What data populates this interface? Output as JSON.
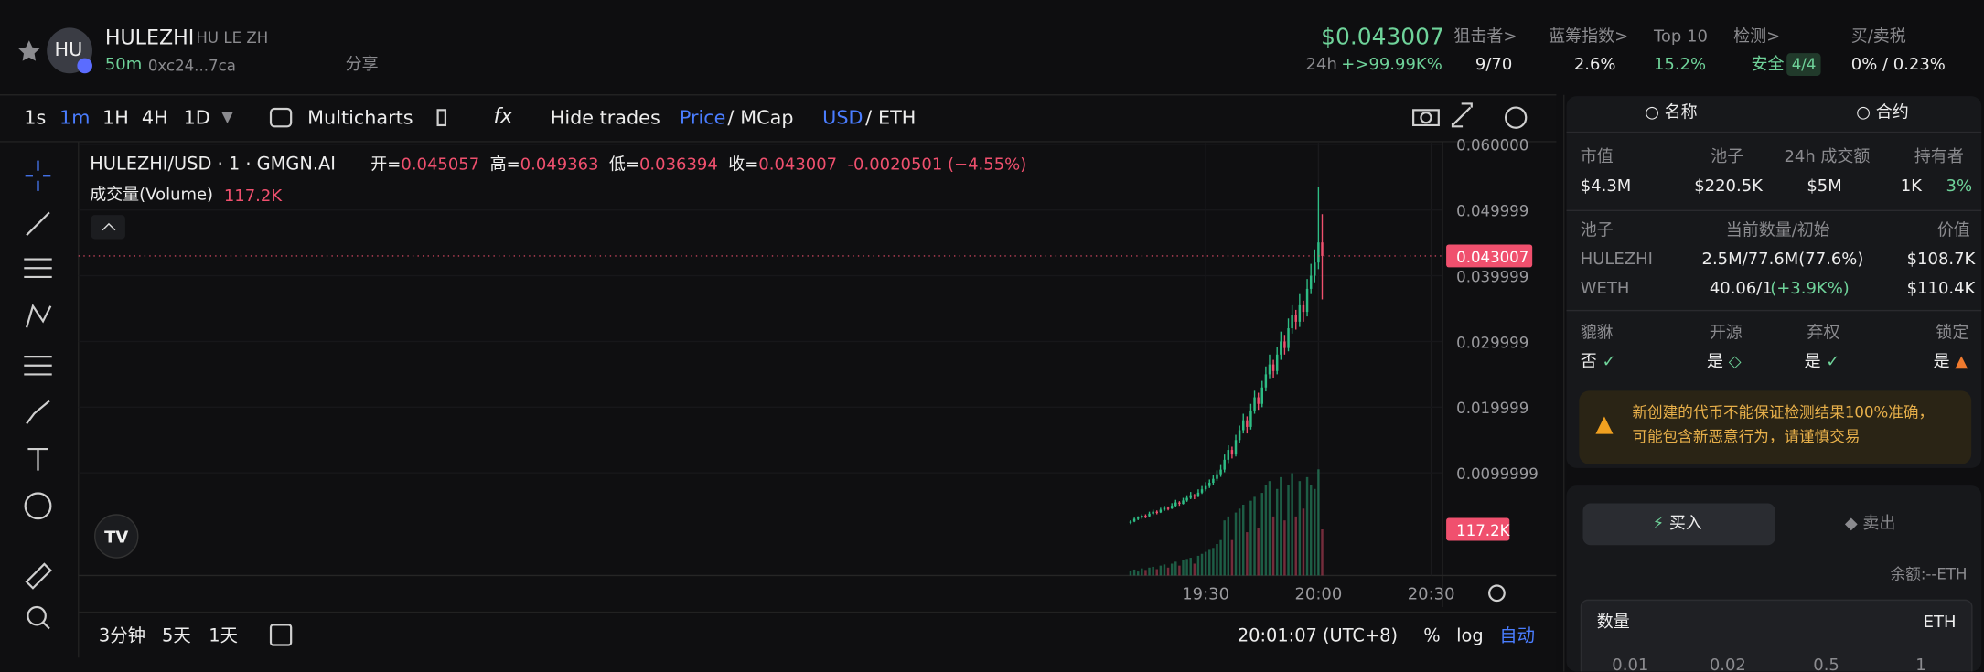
{
  "header": {
    "avatar": "HU",
    "name": "HULEZHI",
    "ticker": "HU LE ZH",
    "age": "50m",
    "address": "0xc24...7ca",
    "share": "分享",
    "price": "$0.043007",
    "change_label": "24h",
    "change": "+>99.99K%",
    "stats": [
      {
        "label": "狙击者>",
        "value": "9/70"
      },
      {
        "label": "蓝筹指数>",
        "value": "2.6%"
      },
      {
        "label": "Top 10",
        "value": "15.2%"
      },
      {
        "label": "检测>",
        "value": "安全",
        "extra": "4/4"
      },
      {
        "label": "买/卖税",
        "value": "0% / 0.23%"
      }
    ]
  },
  "toolbar": {
    "intervals": [
      "1s",
      "1m",
      "1H",
      "4H",
      "1D"
    ],
    "multicharts": "Multicharts",
    "hide_trades": "Hide trades",
    "price": "Price",
    "mcap": "MCap",
    "usd": "USD",
    "eth": "ETH",
    "sep": "/"
  },
  "chart": {
    "type": "candlestick",
    "title": "HULEZHI/USD · 1 · GMGN.AI",
    "ohlc": [
      {
        "k": "开=",
        "v": "0.045057"
      },
      {
        "k": "高=",
        "v": "0.049363"
      },
      {
        "k": "低=",
        "v": "0.036394"
      },
      {
        "k": "收=",
        "v": "0.043007"
      }
    ],
    "change": "-0.0020501",
    "change_pct": "(−4.55%)",
    "volume_title": "成交量(Volume)",
    "volume_value": "117.2K",
    "ylim": [
      -0.0056,
      0.0602
    ],
    "yticks": [
      {
        "value": 0.06,
        "label": "0.060000"
      },
      0.049999,
      0.039999,
      0.029999,
      0.019999,
      0.0099999
    ],
    "xlim": [
      "14:30",
      "20:33"
    ],
    "xticks": [
      "19:30",
      "20:00",
      "20:30"
    ],
    "last_price": 0.043007,
    "last_volume_label": "117.2K",
    "volume_lim": [
      0,
      1100000
    ],
    "up_color": "#2ebd85",
    "down_color": "#f0506e",
    "x": [
      "19:10",
      "19:11",
      "19:12",
      "19:13",
      "19:14",
      "19:15",
      "19:16",
      "19:17",
      "19:18",
      "19:19",
      "19:20",
      "19:21",
      "19:22",
      "19:23",
      "19:24",
      "19:25",
      "19:26",
      "19:27",
      "19:28",
      "19:29",
      "19:30",
      "19:31",
      "19:32",
      "19:33",
      "19:34",
      "19:35",
      "19:36",
      "19:37",
      "19:38",
      "19:39",
      "19:40",
      "19:41",
      "19:42",
      "19:43",
      "19:44",
      "19:45",
      "19:46",
      "19:47",
      "19:48",
      "19:49",
      "19:50",
      "19:51",
      "19:52",
      "19:53",
      "19:54",
      "19:55",
      "19:56",
      "19:57",
      "19:58",
      "19:59",
      "20:00",
      "20:01"
    ],
    "candles": [
      [
        0.0024,
        0.0028,
        0.0022,
        0.0026
      ],
      [
        0.0026,
        0.0032,
        0.0025,
        0.003
      ],
      [
        0.003,
        0.0034,
        0.0028,
        0.0032
      ],
      [
        0.0032,
        0.0037,
        0.003,
        0.0035
      ],
      [
        0.0035,
        0.0037,
        0.0031,
        0.0034
      ],
      [
        0.0034,
        0.0041,
        0.0033,
        0.0038
      ],
      [
        0.0038,
        0.0044,
        0.0036,
        0.0041
      ],
      [
        0.0041,
        0.0043,
        0.0037,
        0.004
      ],
      [
        0.004,
        0.0047,
        0.0039,
        0.0044
      ],
      [
        0.0044,
        0.005,
        0.0042,
        0.0047
      ],
      [
        0.0047,
        0.0049,
        0.0043,
        0.0046
      ],
      [
        0.0046,
        0.0054,
        0.0045,
        0.005
      ],
      [
        0.005,
        0.0059,
        0.0048,
        0.0055
      ],
      [
        0.0055,
        0.0057,
        0.005,
        0.0053
      ],
      [
        0.0053,
        0.0062,
        0.0052,
        0.0058
      ],
      [
        0.0058,
        0.0066,
        0.0056,
        0.0062
      ],
      [
        0.0062,
        0.0071,
        0.006,
        0.0066
      ],
      [
        0.0066,
        0.0068,
        0.006,
        0.0064
      ],
      [
        0.0064,
        0.0075,
        0.0063,
        0.007
      ],
      [
        0.007,
        0.008,
        0.0068,
        0.0075
      ],
      [
        0.0075,
        0.0086,
        0.0072,
        0.008
      ],
      [
        0.008,
        0.009,
        0.0077,
        0.0085
      ],
      [
        0.0085,
        0.0097,
        0.0082,
        0.0091
      ],
      [
        0.0091,
        0.0104,
        0.0088,
        0.0098
      ],
      [
        0.0098,
        0.0112,
        0.0094,
        0.0105
      ],
      [
        0.0105,
        0.0128,
        0.0101,
        0.012
      ],
      [
        0.012,
        0.0142,
        0.0115,
        0.0135
      ],
      [
        0.0135,
        0.014,
        0.0122,
        0.0128
      ],
      [
        0.0128,
        0.0158,
        0.0125,
        0.015
      ],
      [
        0.015,
        0.0172,
        0.0145,
        0.0165
      ],
      [
        0.0165,
        0.019,
        0.016,
        0.018
      ],
      [
        0.018,
        0.0186,
        0.016,
        0.017
      ],
      [
        0.017,
        0.0205,
        0.0166,
        0.0195
      ],
      [
        0.0195,
        0.0225,
        0.019,
        0.0215
      ],
      [
        0.0215,
        0.0222,
        0.0196,
        0.0205
      ],
      [
        0.0205,
        0.024,
        0.02,
        0.023
      ],
      [
        0.023,
        0.0262,
        0.0224,
        0.025
      ],
      [
        0.025,
        0.028,
        0.0244,
        0.0265
      ],
      [
        0.0265,
        0.0272,
        0.0245,
        0.0255
      ],
      [
        0.0255,
        0.0292,
        0.025,
        0.028
      ],
      [
        0.028,
        0.0315,
        0.0272,
        0.03
      ],
      [
        0.03,
        0.031,
        0.028,
        0.029
      ],
      [
        0.029,
        0.0335,
        0.0285,
        0.032
      ],
      [
        0.032,
        0.0355,
        0.0312,
        0.034
      ],
      [
        0.034,
        0.0348,
        0.0318,
        0.033
      ],
      [
        0.033,
        0.0372,
        0.0322,
        0.0355
      ],
      [
        0.0355,
        0.0362,
        0.033,
        0.0345
      ],
      [
        0.0345,
        0.0395,
        0.0338,
        0.038
      ],
      [
        0.038,
        0.0418,
        0.0372,
        0.04
      ],
      [
        0.04,
        0.044,
        0.039,
        0.042
      ],
      [
        0.042,
        0.0535,
        0.041,
        0.045057
      ],
      [
        0.045057,
        0.049363,
        0.036394,
        0.043007
      ]
    ],
    "volumes": [
      12000,
      15000,
      10000,
      18000,
      14000,
      20000,
      22000,
      16000,
      25000,
      28000,
      20000,
      30000,
      35000,
      25000,
      40000,
      42000,
      45000,
      30000,
      50000,
      55000,
      60000,
      65000,
      70000,
      80000,
      90000,
      140000,
      150000,
      90000,
      160000,
      170000,
      180000,
      110000,
      190000,
      200000,
      120000,
      210000,
      230000,
      240000,
      150000,
      220000,
      250000,
      140000,
      230000,
      260000,
      150000,
      240000,
      170000,
      250000,
      230000,
      220000,
      270000,
      117200
    ]
  },
  "bottom": {
    "ranges": [
      "3分钟",
      "5天",
      "1天"
    ],
    "clock": "20:01:07 (UTC+8)",
    "pct": "%",
    "log": "log",
    "auto": "自动"
  },
  "panel": {
    "tabs": [
      "名称",
      "合约"
    ],
    "stat_labels": [
      "市值",
      "池子",
      "24h 成交额",
      "持有者"
    ],
    "stat_values": [
      "$4.3M",
      "$220.5K",
      "$5M",
      "1K"
    ],
    "holder_pct": "3%",
    "pool_headers": [
      "池子",
      "当前数量/初始",
      "价值"
    ],
    "pool_rows": [
      [
        "HULEZHI",
        "2.5M/77.6M(77.6%)",
        "$108.7K"
      ],
      [
        "WETH",
        "40.06/1",
        "$110.4K"
      ]
    ],
    "weth_change": "(+3.9K%)",
    "flag_labels": [
      "貔貅",
      "开源",
      "弃权",
      "锁定"
    ],
    "flag_values": [
      "否",
      "是",
      "是",
      "是"
    ],
    "warning": [
      "新创建的代币不能保证检测结果100%准确，",
      "可能包含新恶意行为，请谨慎交易"
    ],
    "buy": "买入",
    "sell": "卖出",
    "balance": "余额:--ETH",
    "amount": "数量",
    "unit": "ETH",
    "presets": [
      "0.01",
      "0.02",
      "0.5",
      "1"
    ]
  }
}
